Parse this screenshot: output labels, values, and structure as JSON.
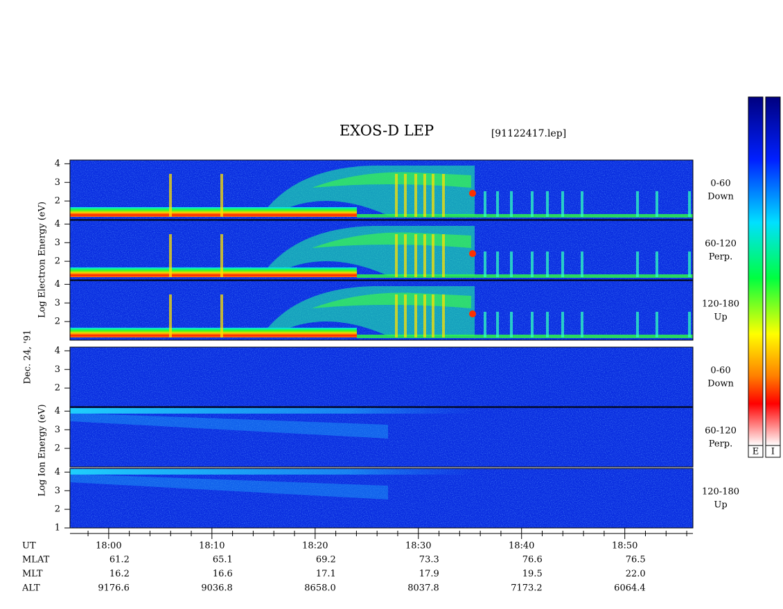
{
  "chart_data": {
    "type": "spectrogram",
    "title": "EXOS-D LEP",
    "subtitle": "[91122417.lep]",
    "date_label": "Dec. 24, '91",
    "groups": [
      {
        "label": "Log  Electron  Energy (eV)",
        "colorbar_label": "E",
        "panels": [
          {
            "label": [
              "0-60",
              "Down"
            ],
            "ylim": [
              1,
              4.2
            ],
            "yticks": [
              2,
              3,
              4
            ]
          },
          {
            "label": [
              "60-120",
              "Perp."
            ],
            "ylim": [
              1,
              4.2
            ],
            "yticks": [
              2,
              3,
              4
            ]
          },
          {
            "label": [
              "120-180",
              "Up"
            ],
            "ylim": [
              1,
              4.2
            ],
            "yticks": [
              2,
              3,
              4
            ]
          }
        ]
      },
      {
        "label": "Log  Ion  Energy (eV)",
        "colorbar_label": "I",
        "panels": [
          {
            "label": [
              "0-60",
              "Down"
            ],
            "ylim": [
              1,
              4.2
            ],
            "yticks": [
              2,
              3,
              4
            ]
          },
          {
            "label": [
              "60-120",
              "Perp."
            ],
            "ylim": [
              1,
              4.2
            ],
            "yticks": [
              2,
              3,
              4
            ]
          },
          {
            "label": [
              "120-180",
              "Up"
            ],
            "ylim": [
              1,
              4.2
            ],
            "yticks": [
              1,
              2,
              3,
              4
            ]
          }
        ]
      }
    ],
    "xlim": [
      1076.25,
      1136.6
    ],
    "xticks": [
      {
        "value": 1080,
        "label": "18:00"
      },
      {
        "value": 1090,
        "label": "18:10"
      },
      {
        "value": 1100,
        "label": "18:20"
      },
      {
        "value": 1110,
        "label": "18:30"
      },
      {
        "value": 1120,
        "label": "18:40"
      },
      {
        "value": 1130,
        "label": "18:50"
      }
    ],
    "xminorticks": [
      1078,
      1082,
      1084,
      1086,
      1088,
      1092,
      1094,
      1096,
      1098,
      1102,
      1104,
      1106,
      1108,
      1112,
      1114,
      1116,
      1118,
      1122,
      1124,
      1126,
      1128,
      1132,
      1134,
      1136
    ],
    "x_label": "UT",
    "ephemeris": [
      {
        "name": "MLAT",
        "values": [
          "61.2",
          "65.1",
          "69.2",
          "73.3",
          "76.6",
          "76.5"
        ]
      },
      {
        "name": "MLT",
        "values": [
          "16.2",
          "16.6",
          "17.1",
          "17.9",
          "19.5",
          "22.0"
        ]
      },
      {
        "name": "ALT",
        "values": [
          "9176.6",
          "9036.8",
          "8658.0",
          "8037.8",
          "7173.2",
          "6064.4"
        ]
      }
    ]
  }
}
